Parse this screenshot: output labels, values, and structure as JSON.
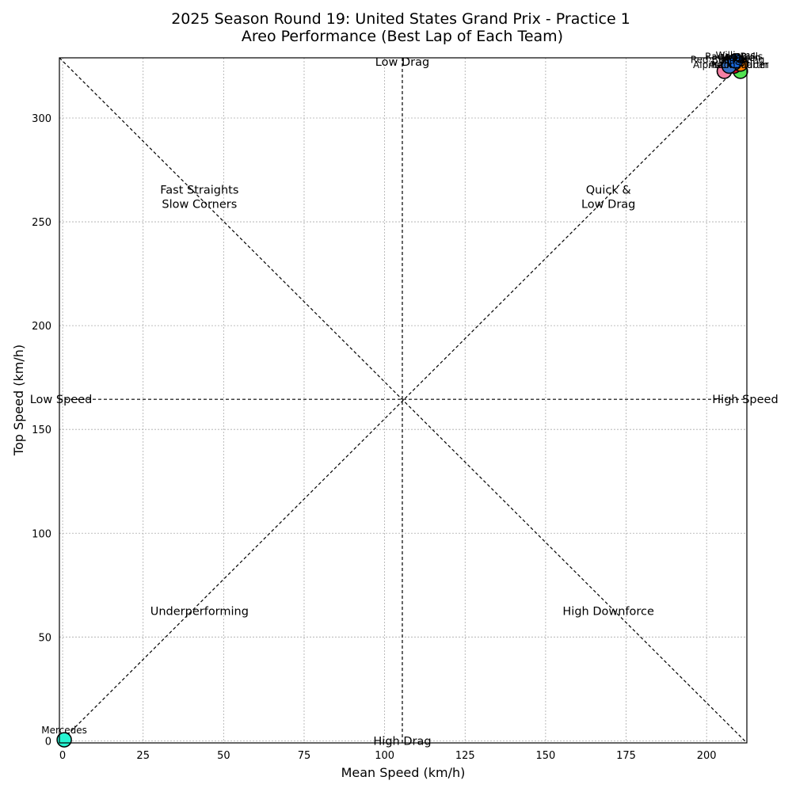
{
  "chart_data": {
    "type": "scatter",
    "title": [
      "2025 Season Round 19: United States Grand Prix - Practice 1",
      "Areo Performance (Best Lap of Each Team)"
    ],
    "xlabel": "Mean Speed (km/h)",
    "ylabel": "Top Speed (km/h)",
    "xlim": [
      -1,
      212.5
    ],
    "ylim": [
      -1,
      329
    ],
    "xticks": [
      0,
      25,
      50,
      75,
      100,
      125,
      150,
      175,
      200
    ],
    "yticks": [
      0,
      50,
      100,
      150,
      200,
      250,
      300
    ],
    "grid": true,
    "reference_center": {
      "x": 105.5,
      "y": 164.5
    },
    "region_labels": [
      {
        "text": "Low Drag",
        "x": 105.5,
        "y": 327
      },
      {
        "text": "High Drag",
        "x": 105.5,
        "y": 0
      },
      {
        "text": "Low Speed",
        "x": -0.5,
        "y": 164.5
      },
      {
        "text": "High Speed",
        "x": 212,
        "y": 164.5
      },
      {
        "text": "Fast Straights\nSlow Corners",
        "x": 42.5,
        "y": 262
      },
      {
        "text": "Quick &\nLow Drag",
        "x": 169.5,
        "y": 262
      },
      {
        "text": "Underperforming",
        "x": 42.5,
        "y": 62.5
      },
      {
        "text": "High Downforce",
        "x": 169.5,
        "y": 62.5
      }
    ],
    "points": [
      {
        "team": "Mercedes",
        "x": 0.5,
        "y": 0.5,
        "color": "#27F4D2"
      },
      {
        "team": "Aston Martin",
        "x": 205.5,
        "y": 322.5,
        "color": "#229971"
      },
      {
        "team": "Kick Sauber",
        "x": 210.5,
        "y": 322.5,
        "color": "#52E252"
      },
      {
        "team": "Alpine",
        "x": 205.5,
        "y": 322.5,
        "color": "#F580A4"
      },
      {
        "team": "Haas",
        "x": 207,
        "y": 326,
        "color": "#B6BABD"
      },
      {
        "team": "Ferrari",
        "x": 208.5,
        "y": 325,
        "color": "#E8002D"
      },
      {
        "team": "McLaren",
        "x": 210.5,
        "y": 326,
        "color": "#FF8000"
      },
      {
        "team": "Racing Bulls",
        "x": 208.5,
        "y": 326.5,
        "color": "#6692FF"
      },
      {
        "team": "Red Bull Racing",
        "x": 207,
        "y": 325,
        "color": "#3671C6"
      },
      {
        "team": "Williams",
        "x": 209,
        "y": 327.5,
        "color": "#1868DB"
      }
    ],
    "visible_point_labels": [
      {
        "text": "Mercedes",
        "x": 0.5,
        "y": 0.5,
        "dx": 0,
        "dy": -8,
        "anchor": "middle"
      },
      {
        "text": "Alpine",
        "x": 205.5,
        "y": 322.5,
        "dx": -2,
        "dy": -4,
        "anchor": "end"
      },
      {
        "text": "Aston Martin",
        "x": 205.5,
        "y": 322.5,
        "dx": -20,
        "dy": -4,
        "anchor": "start"
      },
      {
        "text": "Red Bull Racing",
        "x": 207,
        "y": 325,
        "dx": -2,
        "dy": -4,
        "anchor": "middle"
      },
      {
        "text": "Ferrari",
        "x": 208.5,
        "y": 325,
        "dx": 0,
        "dy": -4,
        "anchor": "middle"
      },
      {
        "text": "Kick Sauber",
        "x": 210.5,
        "y": 322.5,
        "dx": 0,
        "dy": -4,
        "anchor": "middle"
      },
      {
        "text": "McLaren",
        "x": 210.5,
        "y": 326,
        "dx": 0,
        "dy": -4,
        "anchor": "middle"
      },
      {
        "text": "Haas",
        "x": 207,
        "y": 326,
        "dx": 6,
        "dy": -4,
        "anchor": "middle"
      },
      {
        "text": "Racing Bulls",
        "x": 208.5,
        "y": 326.5,
        "dx": 0,
        "dy": -4,
        "anchor": "middle"
      },
      {
        "text": "Williams",
        "x": 209,
        "y": 327.5,
        "dx": 0,
        "dy": -3,
        "anchor": "middle"
      }
    ]
  }
}
